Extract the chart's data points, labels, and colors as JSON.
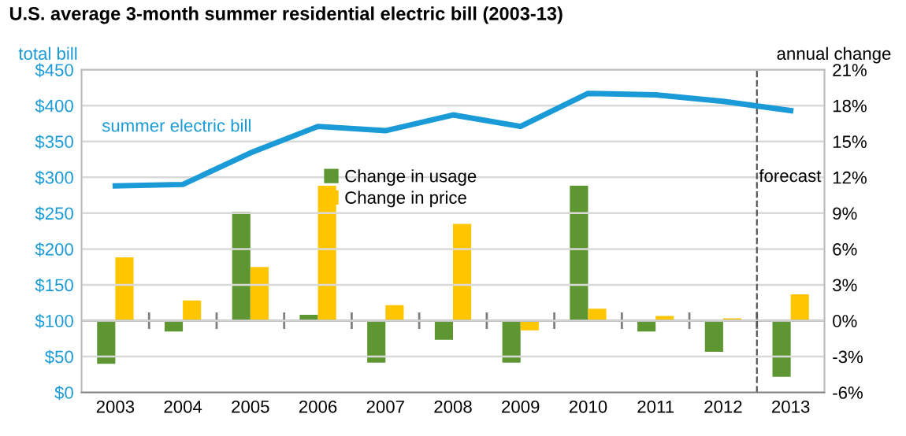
{
  "chart_data": {
    "type": "bar",
    "title": "U.S. average 3-month summer residential electric bill (2003-13)",
    "ylabel": "total bill",
    "y2label": "annual change",
    "x": [
      2003,
      2004,
      2005,
      2006,
      2007,
      2008,
      2009,
      2010,
      2011,
      2012,
      2013
    ],
    "xlim": [
      2002.5,
      2013.5
    ],
    "xticks": [
      2003,
      2004,
      2005,
      2006,
      2007,
      2008,
      2009,
      2010,
      2011,
      2012,
      2013
    ],
    "series": [
      {
        "name": "summer electric bill",
        "type": "line",
        "color": "#1a9ad6",
        "values": [
          288,
          290,
          334,
          371,
          365,
          387,
          371,
          417,
          415,
          406,
          393
        ]
      },
      {
        "name": "Change in usage",
        "axis": "y2",
        "color": "#5e9732",
        "values": [
          -3.6,
          -0.9,
          9.1,
          0.5,
          -3.5,
          -1.6,
          -3.5,
          11.3,
          -0.9,
          -2.6,
          -4.7
        ]
      },
      {
        "name": "Change in price",
        "axis": "y2",
        "color": "#ffc600",
        "values": [
          5.3,
          1.7,
          4.5,
          11.3,
          1.3,
          8.1,
          -0.8,
          1.0,
          0.4,
          0.2,
          2.2
        ]
      }
    ],
    "ylim": [
      0,
      450
    ],
    "yticks": [
      {
        "value": 0,
        "label": "$0"
      },
      {
        "value": 50,
        "label": "$50"
      },
      {
        "value": 100,
        "label": "$100"
      },
      {
        "value": 150,
        "label": "$150"
      },
      {
        "value": 200,
        "label": "$200"
      },
      {
        "value": 250,
        "label": "$250"
      },
      {
        "value": 300,
        "label": "$300"
      },
      {
        "value": 350,
        "label": "$350"
      },
      {
        "value": 400,
        "label": "$400"
      },
      {
        "value": 450,
        "label": "$450"
      }
    ],
    "y2lim": [
      -6,
      21
    ],
    "y2ticks": [
      {
        "value": -6,
        "label": "-6%"
      },
      {
        "value": -3,
        "label": "-3%"
      },
      {
        "value": 0,
        "label": "0%"
      },
      {
        "value": 3,
        "label": "3%"
      },
      {
        "value": 6,
        "label": "6%"
      },
      {
        "value": 9,
        "label": "9%"
      },
      {
        "value": 12,
        "label": "12%"
      },
      {
        "value": 15,
        "label": "15%"
      },
      {
        "value": 18,
        "label": "18%"
      },
      {
        "value": 21,
        "label": "21%"
      }
    ],
    "ref_lines": [
      {
        "axis": "x",
        "value": 2012.5,
        "label": "forecast",
        "color": "#555555",
        "line_style": "dashed"
      }
    ],
    "grid": "y",
    "legend": "top",
    "line_style": "solid",
    "marker": "none"
  }
}
